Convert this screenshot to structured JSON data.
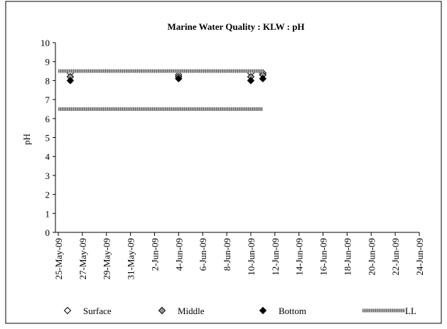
{
  "chart_data": {
    "type": "scatter",
    "title": "Marine Water Quality : KLW : pH",
    "y_label": "pH",
    "xlim": [
      "25-May-09",
      "24-Jun-09"
    ],
    "xticks": [
      "25-May-09",
      "27-May-09",
      "29-May-09",
      "31-May-09",
      "2-Jun-09",
      "4-Jun-09",
      "6-Jun-09",
      "8-Jun-09",
      "10-Jun-09",
      "12-Jun-09",
      "14-Jun-09",
      "16-Jun-09",
      "18-Jun-09",
      "20-Jun-09",
      "22-Jun-09",
      "24-Jun-09"
    ],
    "ylim": [
      0,
      10
    ],
    "yticks": [
      0,
      1,
      2,
      3,
      4,
      5,
      6,
      7,
      8,
      9,
      10
    ],
    "legend": "bottom",
    "series": [
      {
        "name": "Surface",
        "color": "#ffffff",
        "x": [
          "26-May-09",
          "4-Jun-09",
          "10-Jun-09",
          "11-Jun-09"
        ],
        "values": [
          8.4,
          8.3,
          8.4,
          8.4
        ]
      },
      {
        "name": "Middle",
        "color": "#999999",
        "x": [
          "26-May-09",
          "4-Jun-09",
          "10-Jun-09",
          "11-Jun-09"
        ],
        "values": [
          8.2,
          8.2,
          8.2,
          8.3
        ]
      },
      {
        "name": "Bottom",
        "color": "#000000",
        "x": [
          "26-May-09",
          "4-Jun-09",
          "10-Jun-09",
          "11-Jun-09"
        ],
        "values": [
          8.0,
          8.1,
          8.0,
          8.1
        ]
      },
      {
        "name": "LL",
        "color": "#a6a6a6",
        "line": true,
        "x": [
          "25-May-09",
          "11-Jun-09",
          "11-Jun-09",
          "25-May-09",
          "11-Jun-09"
        ],
        "values": [
          8.5,
          8.5,
          null,
          6.5,
          6.5
        ]
      }
    ]
  }
}
